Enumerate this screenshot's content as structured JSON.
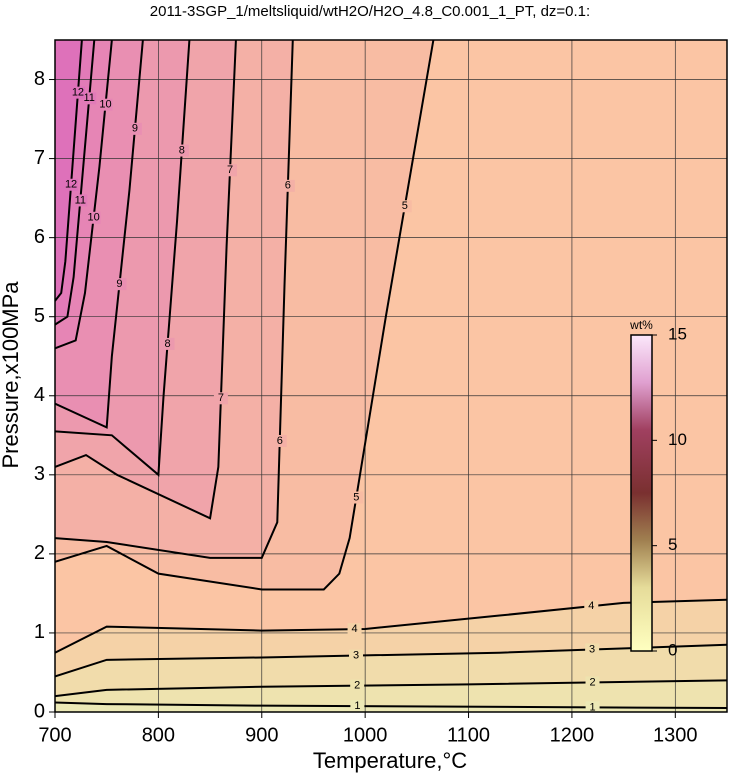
{
  "chart_data": {
    "type": "contour",
    "title": "2011-3SGP_1/meltsliquid/wtH2O/H2O_4.8_C0.001_1_PT, dz=0.1:",
    "x_label": "Temperature,°C",
    "y_label": "Pressure,x100MPa",
    "xlim": [
      700,
      1350
    ],
    "ylim": [
      0,
      8.5
    ],
    "xticks": [
      700,
      800,
      900,
      1000,
      1100,
      1200,
      1300
    ],
    "yticks": [
      0,
      1,
      2,
      3,
      4,
      5,
      6,
      7,
      8
    ],
    "grid": true,
    "background": "#fbc5a4",
    "contours": [
      {
        "level": 4,
        "side": "below",
        "color": "#f5d2a7",
        "x": [
          700,
          750,
          900,
          1000,
          1130,
          1250,
          1350
        ],
        "y": [
          0.75,
          1.08,
          1.03,
          1.05,
          1.22,
          1.38,
          1.42
        ]
      },
      {
        "level": 3,
        "side": "below",
        "color": "#f1dcab",
        "x": [
          700,
          750,
          900,
          1130,
          1350
        ],
        "y": [
          0.45,
          0.66,
          0.69,
          0.75,
          0.85
        ]
      },
      {
        "level": 2,
        "side": "below",
        "color": "#eee3af",
        "x": [
          700,
          750,
          900,
          1100,
          1350
        ],
        "y": [
          0.2,
          0.28,
          0.32,
          0.35,
          0.4
        ]
      },
      {
        "level": 1,
        "side": "below",
        "color": "#ece9b6",
        "x": [
          700,
          750,
          900,
          1350
        ],
        "y": [
          0.12,
          0.1,
          0.08,
          0.05
        ]
      },
      {
        "level": 5,
        "side": "above",
        "color": "#f8bca3",
        "x": [
          700,
          750,
          800,
          900,
          960,
          975,
          985,
          1020,
          1066
        ],
        "y": [
          1.9,
          2.1,
          1.75,
          1.55,
          1.55,
          1.75,
          2.2,
          5.0,
          8.5
        ]
      },
      {
        "level": 6,
        "side": "above",
        "color": "#f4b0a6",
        "x": [
          700,
          750,
          850,
          900,
          915,
          922,
          930
        ],
        "y": [
          2.2,
          2.15,
          1.95,
          1.95,
          2.4,
          5.4,
          8.5
        ]
      },
      {
        "level": 7,
        "side": "above",
        "color": "#f0a4aa",
        "x": [
          700,
          730,
          760,
          850,
          858,
          866,
          875
        ],
        "y": [
          3.1,
          3.25,
          3.0,
          2.45,
          3.1,
          5.9,
          8.5
        ]
      },
      {
        "level": 8,
        "side": "above",
        "color": "#ec99ae",
        "x": [
          700,
          755,
          800,
          805,
          818,
          830
        ],
        "y": [
          3.55,
          3.5,
          3.0,
          4.0,
          6.2,
          8.5
        ]
      },
      {
        "level": 9,
        "side": "above",
        "color": "#e98fb2",
        "x": [
          700,
          750,
          755,
          772,
          785
        ],
        "y": [
          3.9,
          3.6,
          4.5,
          6.6,
          8.5
        ]
      },
      {
        "level": 10,
        "side": "above",
        "color": "#e685b5",
        "x": [
          700,
          720,
          729,
          743,
          755
        ],
        "y": [
          4.6,
          4.7,
          5.3,
          6.9,
          8.5
        ]
      },
      {
        "level": 11,
        "side": "above",
        "color": "#e27bb8",
        "x": [
          700,
          712,
          718,
          728,
          738
        ],
        "y": [
          4.9,
          5.0,
          5.5,
          7.0,
          8.5
        ]
      },
      {
        "level": 12,
        "side": "above",
        "color": "#de71ba",
        "x": [
          700,
          706,
          710,
          718,
          726
        ],
        "y": [
          5.2,
          5.3,
          5.7,
          7.1,
          8.5
        ]
      }
    ],
    "colorbar": {
      "label": "wt%",
      "lim": [
        0,
        15
      ],
      "ticks": [
        0,
        5,
        10,
        15
      ]
    }
  }
}
